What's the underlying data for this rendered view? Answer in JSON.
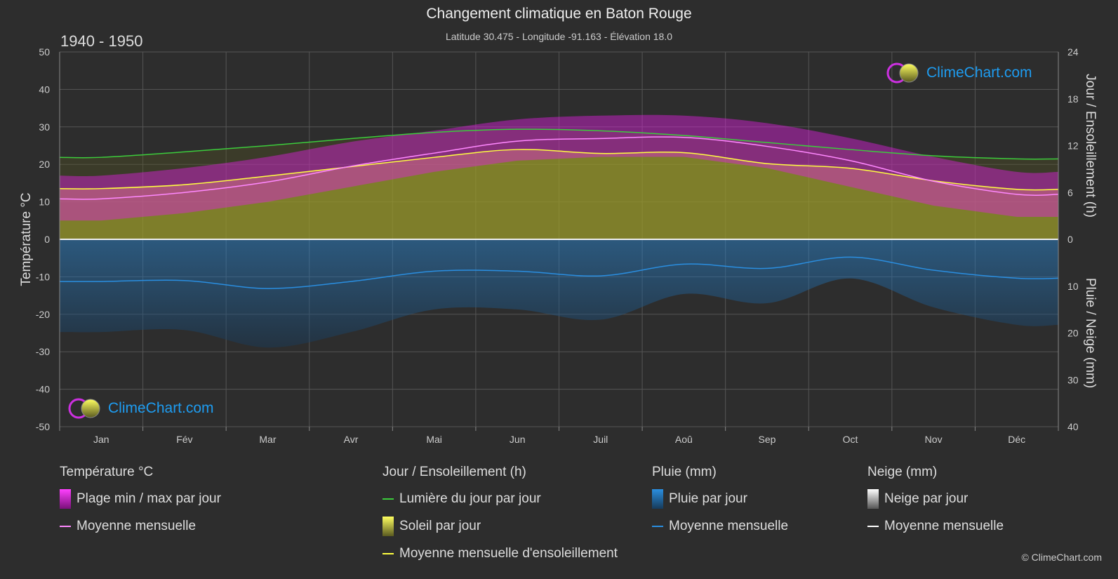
{
  "header": {
    "title": "Changement climatique en Baton Rouge",
    "subtitle": "Latitude 30.475 - Longitude -91.163 - Élévation 18.0",
    "period": "1940 - 1950"
  },
  "logo_text": "ClimeChart.com",
  "copyright": "© ClimeChart.com",
  "legend": {
    "temp": {
      "title": "Température °C",
      "range": "Plage min / max par jour",
      "mean": "Moyenne mensuelle"
    },
    "sun": {
      "title": "Jour / Ensoleillement (h)",
      "daylight": "Lumière du jour par jour",
      "sunshine": "Soleil par jour",
      "mean": "Moyenne mensuelle d'ensoleillement"
    },
    "rain": {
      "title": "Pluie (mm)",
      "daily": "Pluie par jour",
      "mean": "Moyenne mensuelle"
    },
    "snow": {
      "title": "Neige (mm)",
      "daily": "Neige par jour",
      "mean": "Moyenne mensuelle"
    }
  },
  "colors": {
    "background": "#2d2d2d",
    "temp_range": "#e020e0",
    "temp_mean": "#ff88ff",
    "daylight": "#3ccc3c",
    "sunshine_fill": "#9a9a2a",
    "sunshine_mean": "#ffff40",
    "rain_fill": "#1e6aa8",
    "rain_mean": "#2a8ee0",
    "snow": "#ffffff",
    "logo": "#1e9cf0"
  },
  "chart_data": {
    "type": "area",
    "categories": [
      "Jan",
      "Fév",
      "Mar",
      "Avr",
      "Mai",
      "Jun",
      "Juil",
      "Aoû",
      "Sep",
      "Oct",
      "Nov",
      "Déc"
    ],
    "ylabel_left": "Température °C",
    "ylabel_right_top": "Jour / Ensoleillement (h)",
    "ylabel_right_bottom": "Pluie / Neige (mm)",
    "ylim_left": [
      -50,
      50
    ],
    "yticks_left": [
      50,
      40,
      30,
      20,
      10,
      0,
      -10,
      -20,
      -30,
      -40,
      -50
    ],
    "yticks_right_top": [
      24,
      18,
      12,
      6,
      0
    ],
    "yticks_right_bottom": [
      0,
      10,
      20,
      30,
      40
    ],
    "grid": true,
    "series": [
      {
        "name": "Lumière du jour par jour",
        "axis": "hours",
        "values": [
          10.5,
          11.2,
          12.0,
          12.9,
          13.7,
          14.1,
          13.9,
          13.3,
          12.4,
          11.5,
          10.7,
          10.3
        ]
      },
      {
        "name": "Moyenne mensuelle d'ensoleillement",
        "axis": "hours",
        "values": [
          6.5,
          7.0,
          8.1,
          9.3,
          10.5,
          11.5,
          11.0,
          11.1,
          9.7,
          9.1,
          7.5,
          6.4
        ]
      },
      {
        "name": "Moyenne mensuelle",
        "kind": "temperature",
        "axis": "celsius",
        "values": [
          10.8,
          12.5,
          15.3,
          19.5,
          23.0,
          26.2,
          26.9,
          27.2,
          24.8,
          21.0,
          15.5,
          12.0
        ]
      },
      {
        "name": "Plage min / max par jour",
        "kind": "temperature-range",
        "axis": "celsius",
        "min": [
          5,
          7,
          10,
          14,
          18,
          21,
          22,
          22,
          19,
          14,
          9,
          6
        ],
        "max": [
          17,
          19,
          22,
          26,
          29,
          32,
          33,
          33,
          31,
          27,
          22,
          18
        ]
      },
      {
        "name": "Moyenne mensuelle",
        "kind": "rain",
        "axis": "mm",
        "values": [
          9.0,
          8.8,
          10.5,
          9.0,
          6.8,
          6.8,
          7.8,
          5.3,
          6.2,
          3.8,
          6.6,
          8.3
        ]
      },
      {
        "name": "Moyenne mensuelle",
        "kind": "snow",
        "axis": "mm",
        "values": [
          0,
          0,
          0,
          0,
          0,
          0,
          0,
          0,
          0,
          0,
          0,
          0
        ]
      }
    ]
  }
}
